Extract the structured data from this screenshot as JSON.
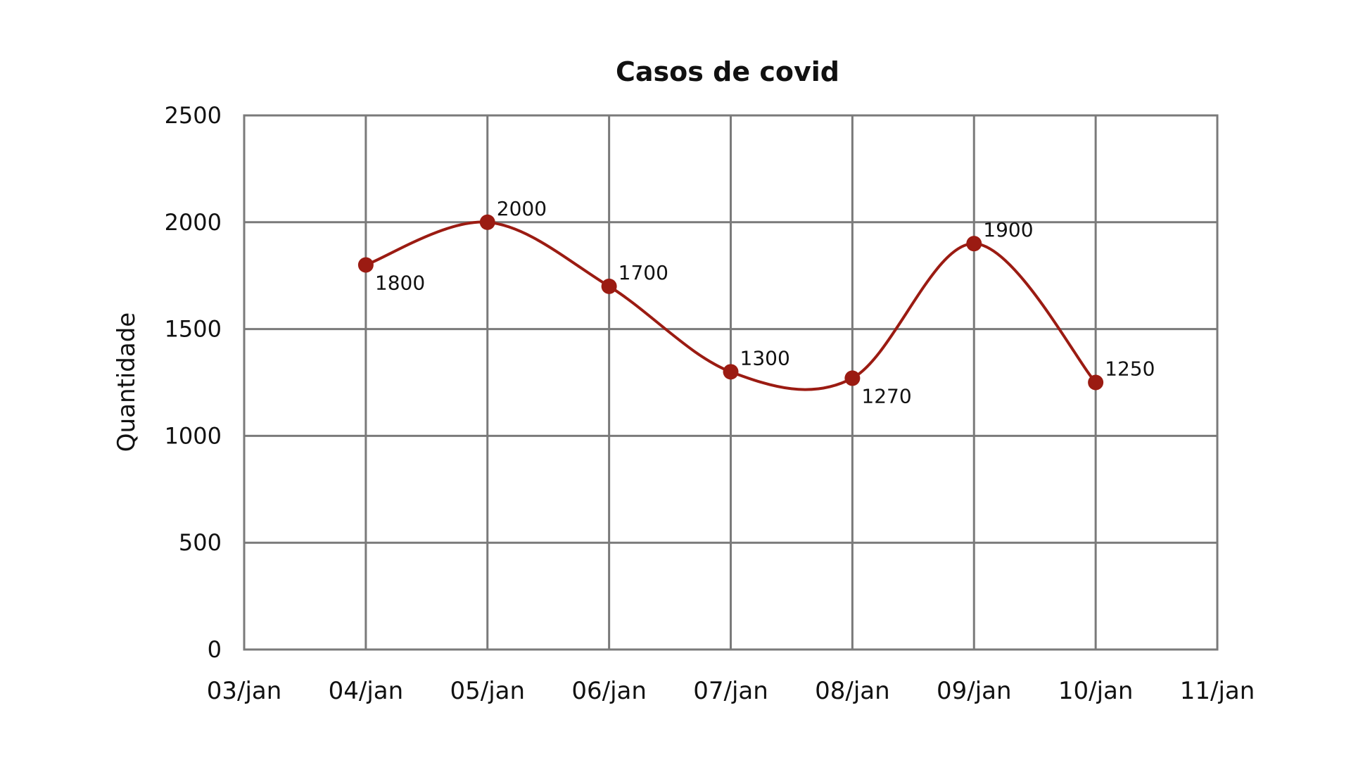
{
  "chart_data": {
    "type": "line",
    "title": "Casos de covid",
    "xlabel": "",
    "ylabel": "Quantidade",
    "x_ticks": [
      "03/jan",
      "04/jan",
      "05/jan",
      "06/jan",
      "07/jan",
      "08/jan",
      "09/jan",
      "10/jan",
      "11/jan"
    ],
    "y_ticks": [
      0,
      500,
      1000,
      1500,
      2000,
      2500
    ],
    "ylim": [
      0,
      2500
    ],
    "grid": true,
    "smooth": true,
    "series": [
      {
        "x": [
          "04/jan",
          "05/jan",
          "06/jan",
          "07/jan",
          "08/jan",
          "09/jan",
          "10/jan"
        ],
        "values": [
          1800,
          2000,
          1700,
          1300,
          1270,
          1900,
          1250
        ],
        "labels": [
          "1800",
          "2000",
          "1700",
          "1300",
          "1270",
          "1900",
          "1250"
        ],
        "label_positions": [
          "below",
          "above",
          "above",
          "above",
          "below",
          "above",
          "above"
        ],
        "color": "#9b1b12"
      }
    ]
  }
}
